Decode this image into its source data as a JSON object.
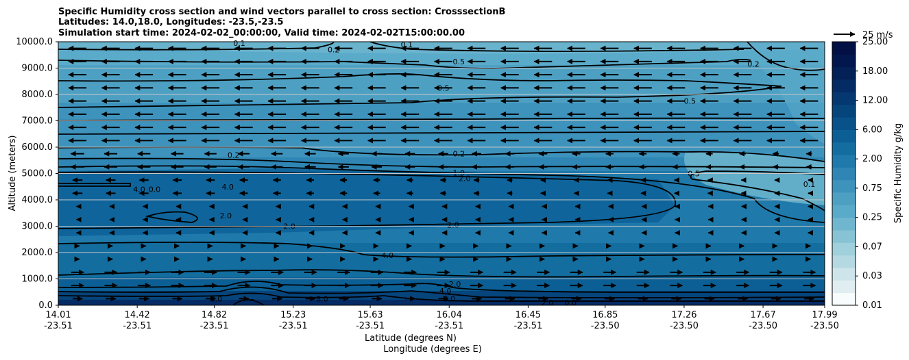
{
  "chart_data": {
    "type": "heatmap",
    "title_lines": [
      "Specific Humidity cross section and wind vectors parallel to cross section: CrosssectionB",
      "Latitudes: 14.0,18.0, Longitudes: -23.5,-23.5",
      "Simulation start time: 2024-02-02_00:00:00, Valid time: 2024-02-02T15:00:00.00"
    ],
    "ylabel": "Altitude (meters)",
    "xlabel_lines": [
      "Latitude (degrees N)",
      "Longitude (degrees E)"
    ],
    "ylim": [
      0,
      10000
    ],
    "yticks": [
      "0.0",
      "1000.0",
      "2000.0",
      "3000.0",
      "4000.0",
      "5000.0",
      "6000.0",
      "7000.0",
      "8000.0",
      "9000.0",
      "10000.0"
    ],
    "xlim_lat": [
      14.01,
      17.99
    ],
    "xticks": [
      {
        "lat": "14.01",
        "lon": "-23.51"
      },
      {
        "lat": "14.42",
        "lon": "-23.51"
      },
      {
        "lat": "14.82",
        "lon": "-23.51"
      },
      {
        "lat": "15.23",
        "lon": "-23.51"
      },
      {
        "lat": "15.63",
        "lon": "-23.51"
      },
      {
        "lat": "16.04",
        "lon": "-23.51"
      },
      {
        "lat": "16.45",
        "lon": "-23.51"
      },
      {
        "lat": "16.85",
        "lon": "-23.50"
      },
      {
        "lat": "17.26",
        "lon": "-23.50"
      },
      {
        "lat": "17.67",
        "lon": "-23.50"
      },
      {
        "lat": "17.99",
        "lon": "-23.50"
      }
    ],
    "grid": "horizontal",
    "colorbar": {
      "label": "Specific Humidity g/kg",
      "ticks": [
        "0.01",
        "0.03",
        "0.07",
        "0.25",
        "0.75",
        "2.00",
        "6.00",
        "12.00",
        "18.00",
        "25.00"
      ],
      "colors": [
        "#f7fcfd",
        "#e0eef2",
        "#cde5ea",
        "#b5d9e2",
        "#9fd0dc",
        "#87c3d4",
        "#6fb6ce",
        "#5aaaca",
        "#4ea0c3",
        "#3e93bd",
        "#2f86b4",
        "#1f79aa",
        "#136d9f",
        "#0b5f95",
        "#085189",
        "#06447c",
        "#053770",
        "#042b63",
        "#032057",
        "#02174d",
        "#021044"
      ]
    },
    "quiver_key": {
      "label": "25 m/s",
      "value": 25
    },
    "contour_levels": [
      "0.1",
      "0.2",
      "0.5",
      "1.0",
      "2.0",
      "4.0",
      "8.0"
    ],
    "contour_labels": [
      {
        "text": "0.1",
        "x": 14.95,
        "y": 9950
      },
      {
        "text": "0.2",
        "x": 15.44,
        "y": 9700
      },
      {
        "text": "0.1",
        "x": 15.82,
        "y": 9900
      },
      {
        "text": "0.5",
        "x": 16.09,
        "y": 9250
      },
      {
        "text": "0.5",
        "x": 16.01,
        "y": 8250
      },
      {
        "text": "0.2",
        "x": 17.62,
        "y": 9150
      },
      {
        "text": "0.5",
        "x": 17.29,
        "y": 7750
      },
      {
        "text": "0.2",
        "x": 14.92,
        "y": 5700
      },
      {
        "text": "0.2",
        "x": 16.09,
        "y": 5750
      },
      {
        "text": "1.0",
        "x": 16.09,
        "y": 5020
      },
      {
        "text": "2.0",
        "x": 16.12,
        "y": 4820
      },
      {
        "text": "0.5",
        "x": 17.31,
        "y": 5000
      },
      {
        "text": "0.1",
        "x": 17.91,
        "y": 4600
      },
      {
        "text": "4.0",
        "x": 14.43,
        "y": 4400
      },
      {
        "text": "0.0",
        "x": 14.51,
        "y": 4400
      },
      {
        "text": "4.0",
        "x": 14.89,
        "y": 4500
      },
      {
        "text": "2.0",
        "x": 14.88,
        "y": 3400
      },
      {
        "text": "2.0",
        "x": 15.21,
        "y": 3000
      },
      {
        "text": "2.0",
        "x": 16.06,
        "y": 3050
      },
      {
        "text": "4.0",
        "x": 15.72,
        "y": 1900
      },
      {
        "text": "2.0",
        "x": 16.07,
        "y": 800
      },
      {
        "text": "4.0",
        "x": 16.02,
        "y": 550
      },
      {
        "text": "8.0",
        "x": 16.04,
        "y": 250
      },
      {
        "text": "8.0",
        "x": 15.38,
        "y": 250
      },
      {
        "text": "8.0",
        "x": 14.83,
        "y": 250
      },
      {
        "text": "2.0",
        "x": 16.55,
        "y": 100
      },
      {
        "text": "0.0",
        "x": 16.67,
        "y": 100
      }
    ]
  }
}
